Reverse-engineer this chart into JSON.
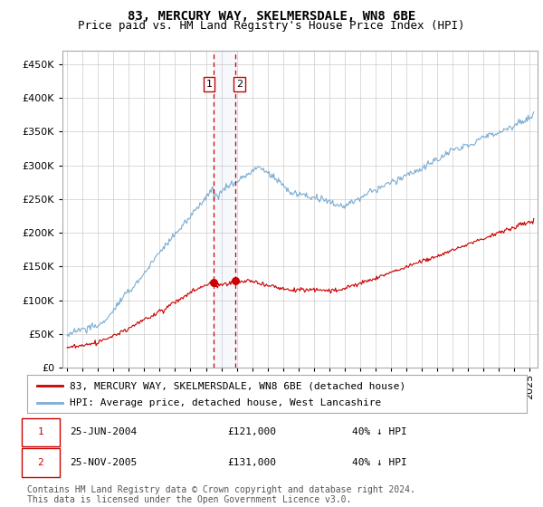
{
  "title": "83, MERCURY WAY, SKELMERSDALE, WN8 6BE",
  "subtitle": "Price paid vs. HM Land Registry's House Price Index (HPI)",
  "ytick_values": [
    0,
    50000,
    100000,
    150000,
    200000,
    250000,
    300000,
    350000,
    400000,
    450000
  ],
  "ylim": [
    0,
    470000
  ],
  "xlim_start": 1994.7,
  "xlim_end": 2025.5,
  "hpi_color": "#7aadd4",
  "price_color": "#cc0000",
  "sale1_date": 2004.48,
  "sale1_price": 121000,
  "sale2_date": 2005.9,
  "sale2_price": 131000,
  "vline_color": "#cc0000",
  "box_color": "#cc0000",
  "legend_line1": "83, MERCURY WAY, SKELMERSDALE, WN8 6BE (detached house)",
  "legend_line2": "HPI: Average price, detached house, West Lancashire",
  "table_row1_date": "25-JUN-2004",
  "table_row1_price": "£121,000",
  "table_row1_hpi": "40% ↓ HPI",
  "table_row2_date": "25-NOV-2005",
  "table_row2_price": "£131,000",
  "table_row2_hpi": "40% ↓ HPI",
  "footer": "Contains HM Land Registry data © Crown copyright and database right 2024.\nThis data is licensed under the Open Government Licence v3.0.",
  "background_color": "#ffffff",
  "grid_color": "#cccccc",
  "title_fontsize": 10,
  "subtitle_fontsize": 9,
  "tick_fontsize": 8,
  "legend_fontsize": 8,
  "table_fontsize": 8,
  "footer_fontsize": 7
}
